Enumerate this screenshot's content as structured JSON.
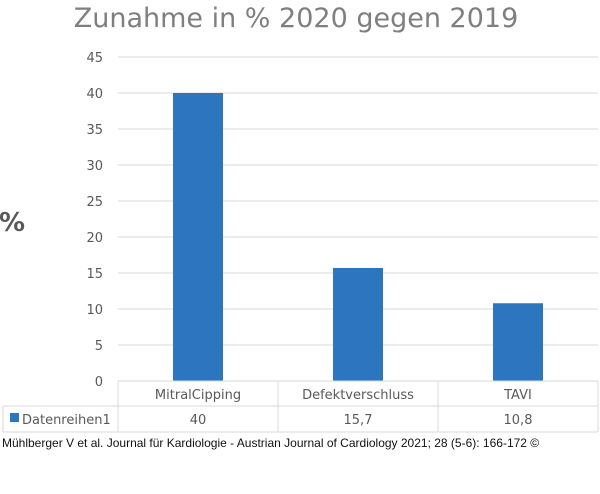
{
  "chart_data": {
    "type": "bar",
    "title": "Zunahme in % 2020 gegen 2019",
    "ylabel": "%",
    "xlabel": "",
    "categories": [
      "MitralCipping",
      "Defektverschluss",
      "TAVI"
    ],
    "series": [
      {
        "name": "Datenreihen1",
        "values": [
          40,
          15.7,
          10.8
        ],
        "labels": [
          "40",
          "15,7",
          "10,8"
        ]
      }
    ],
    "ylim": [
      0,
      45
    ],
    "yticks": [
      0,
      5,
      10,
      15,
      20,
      25,
      30,
      35,
      40,
      45
    ],
    "grid": true,
    "data_table": true
  },
  "colors": {
    "bar": "#2e75c0",
    "grid": "#d9d9d9",
    "text": "#595959",
    "title": "#7f7f7f"
  },
  "footer": {
    "citation": "Mühlberger V et al. Journal für Kardiologie - Austrian Journal of Cardiology 2021; 28 (5-6): 166-172 ©"
  }
}
